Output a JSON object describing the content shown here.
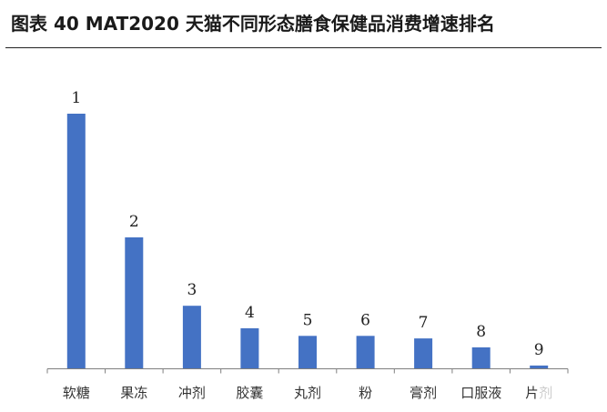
{
  "figure": {
    "title": "图表 40 MAT2020 天猫不同形态膳食保健品消费增速排名"
  },
  "chart_data": {
    "type": "bar",
    "title": "",
    "xlabel": "",
    "ylabel": "",
    "categories": [
      "软糖",
      "果冻",
      "冲剂",
      "胶囊",
      "丸剂",
      "粉",
      "膏剂",
      "口服液",
      "片剂"
    ],
    "data_labels": [
      "1",
      "2",
      "3",
      "4",
      "5",
      "6",
      "7",
      "8",
      "9"
    ],
    "values": [
      100,
      51.5,
      24.7,
      15.9,
      12.9,
      12.9,
      11.9,
      8.4,
      1.3
    ],
    "ylim": [
      0,
      100
    ],
    "grid": false,
    "legend": "none",
    "colors": {
      "bar": "#4472C4",
      "axis": "#7f7f7f"
    }
  }
}
